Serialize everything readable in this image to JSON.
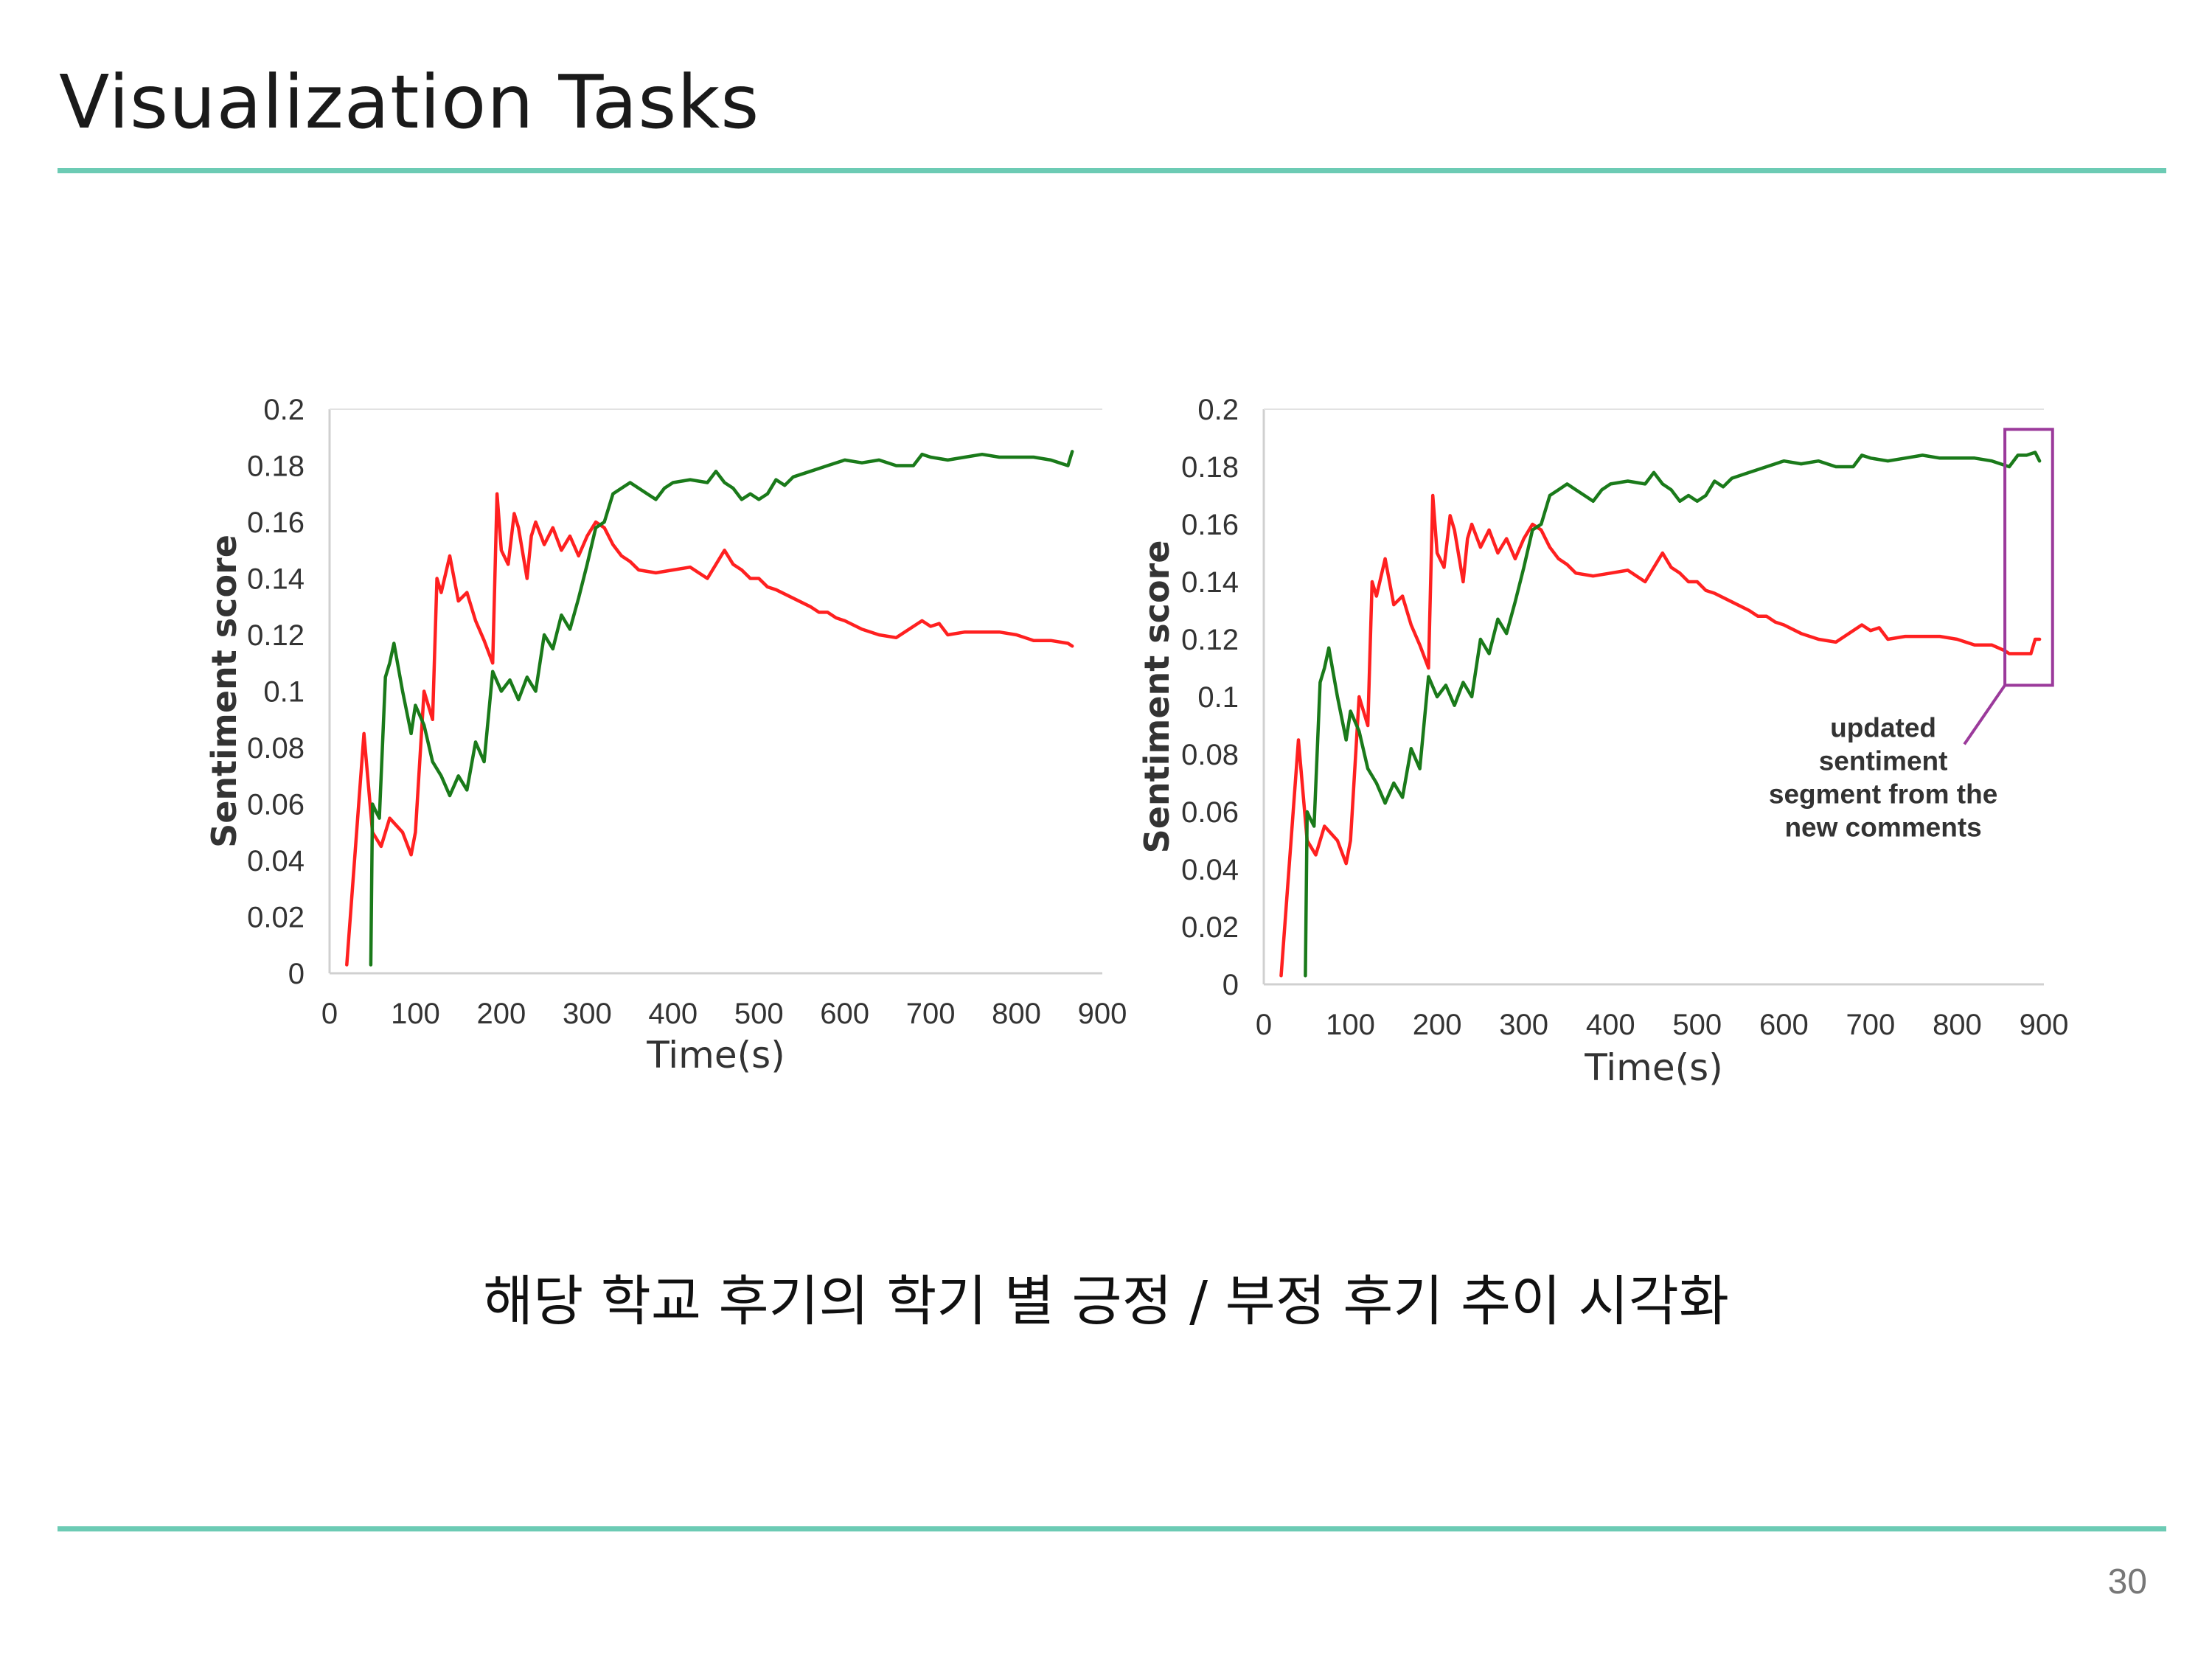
{
  "slide": {
    "title": "Visualization Tasks",
    "caption": "해당 학교 후기의 학기 별 긍정 / 부정 후기 추이 시각화",
    "page_number": "30",
    "accent_color": "#6ccbb4"
  },
  "chart_data": [
    {
      "type": "line",
      "xlabel": "Time(s)",
      "ylabel": "Sentiment score",
      "xlim": [
        0,
        900
      ],
      "ylim": [
        0,
        0.2
      ],
      "x_ticks": [
        "0",
        "100",
        "200",
        "300",
        "400",
        "500",
        "600",
        "700",
        "800",
        "900"
      ],
      "y_ticks": [
        "0",
        "0.02",
        "0.04",
        "0.06",
        "0.08",
        "0.1",
        "0.12",
        "0.14",
        "0.16",
        "0.18",
        "0.2"
      ],
      "grid": false,
      "series": [
        {
          "color": "#ff2020",
          "x": [
            20,
            40,
            50,
            60,
            70,
            85,
            95,
            100,
            110,
            120,
            125,
            130,
            140,
            150,
            160,
            170,
            180,
            190,
            195,
            200,
            208,
            215,
            220,
            230,
            235,
            240,
            250,
            260,
            270,
            280,
            290,
            300,
            310,
            320,
            330,
            340,
            350,
            360,
            380,
            400,
            420,
            430,
            440,
            460,
            470,
            480,
            490,
            500,
            510,
            520,
            540,
            560,
            570,
            580,
            590,
            600,
            620,
            640,
            660,
            690,
            700,
            710,
            720,
            740,
            760,
            780,
            800,
            820,
            840,
            860,
            865
          ],
          "values": [
            0.003,
            0.085,
            0.05,
            0.045,
            0.055,
            0.05,
            0.042,
            0.05,
            0.1,
            0.09,
            0.14,
            0.135,
            0.148,
            0.132,
            0.135,
            0.125,
            0.118,
            0.11,
            0.17,
            0.15,
            0.145,
            0.163,
            0.158,
            0.14,
            0.155,
            0.16,
            0.152,
            0.158,
            0.15,
            0.155,
            0.148,
            0.155,
            0.16,
            0.158,
            0.152,
            0.148,
            0.146,
            0.143,
            0.142,
            0.143,
            0.144,
            0.142,
            0.14,
            0.15,
            0.145,
            0.143,
            0.14,
            0.14,
            0.137,
            0.136,
            0.133,
            0.13,
            0.128,
            0.128,
            0.126,
            0.125,
            0.122,
            0.12,
            0.119,
            0.125,
            0.123,
            0.124,
            0.12,
            0.121,
            0.121,
            0.121,
            0.12,
            0.118,
            0.118,
            0.117,
            0.116
          ]
        },
        {
          "color": "#1a7a1a",
          "x": [
            48,
            50,
            53,
            58,
            65,
            70,
            75,
            85,
            95,
            100,
            110,
            120,
            130,
            140,
            150,
            160,
            170,
            180,
            190,
            200,
            210,
            220,
            230,
            240,
            250,
            260,
            270,
            280,
            290,
            300,
            310,
            320,
            330,
            340,
            350,
            360,
            370,
            380,
            390,
            400,
            420,
            440,
            450,
            460,
            470,
            480,
            490,
            500,
            510,
            520,
            530,
            540,
            560,
            580,
            600,
            620,
            640,
            660,
            680,
            690,
            700,
            720,
            740,
            760,
            780,
            800,
            820,
            840,
            850,
            860,
            865
          ],
          "values": [
            0.003,
            0.06,
            0.058,
            0.055,
            0.105,
            0.11,
            0.117,
            0.1,
            0.085,
            0.095,
            0.088,
            0.075,
            0.07,
            0.063,
            0.07,
            0.065,
            0.082,
            0.075,
            0.107,
            0.1,
            0.104,
            0.097,
            0.105,
            0.1,
            0.12,
            0.115,
            0.127,
            0.122,
            0.133,
            0.145,
            0.158,
            0.16,
            0.17,
            0.172,
            0.174,
            0.172,
            0.17,
            0.168,
            0.172,
            0.174,
            0.175,
            0.174,
            0.178,
            0.174,
            0.172,
            0.168,
            0.17,
            0.168,
            0.17,
            0.175,
            0.173,
            0.176,
            0.178,
            0.18,
            0.182,
            0.181,
            0.182,
            0.18,
            0.18,
            0.184,
            0.183,
            0.182,
            0.183,
            0.184,
            0.183,
            0.183,
            0.183,
            0.182,
            0.181,
            0.18,
            0.185
          ]
        }
      ]
    },
    {
      "type": "line",
      "xlabel": "Time(s)",
      "ylabel": "Sentiment score",
      "xlim": [
        0,
        900
      ],
      "ylim": [
        0,
        0.2
      ],
      "x_ticks": [
        "0",
        "100",
        "200",
        "300",
        "400",
        "500",
        "600",
        "700",
        "800",
        "900"
      ],
      "y_ticks": [
        "0",
        "0.02",
        "0.04",
        "0.06",
        "0.08",
        "0.1",
        "0.12",
        "0.14",
        "0.16",
        "0.18",
        "0.2"
      ],
      "grid": false,
      "annotation": {
        "lines": [
          "updated",
          "sentiment",
          "segment from the",
          "new comments"
        ],
        "box_x": [
          855,
          910
        ],
        "box_y": [
          0.104,
          0.193
        ],
        "color": "#9b3a9b"
      },
      "series": [
        {
          "color": "#ff2020",
          "x": [
            20,
            40,
            50,
            60,
            70,
            85,
            95,
            100,
            110,
            120,
            125,
            130,
            140,
            150,
            160,
            170,
            180,
            190,
            195,
            200,
            208,
            215,
            220,
            230,
            235,
            240,
            250,
            260,
            270,
            280,
            290,
            300,
            310,
            320,
            330,
            340,
            350,
            360,
            380,
            400,
            420,
            430,
            440,
            460,
            470,
            480,
            490,
            500,
            510,
            520,
            540,
            560,
            570,
            580,
            590,
            600,
            620,
            640,
            660,
            690,
            700,
            710,
            720,
            740,
            760,
            780,
            800,
            820,
            840,
            855,
            860,
            870,
            885,
            890,
            895
          ],
          "values": [
            0.003,
            0.085,
            0.05,
            0.045,
            0.055,
            0.05,
            0.042,
            0.05,
            0.1,
            0.09,
            0.14,
            0.135,
            0.148,
            0.132,
            0.135,
            0.125,
            0.118,
            0.11,
            0.17,
            0.15,
            0.145,
            0.163,
            0.158,
            0.14,
            0.155,
            0.16,
            0.152,
            0.158,
            0.15,
            0.155,
            0.148,
            0.155,
            0.16,
            0.158,
            0.152,
            0.148,
            0.146,
            0.143,
            0.142,
            0.143,
            0.144,
            0.142,
            0.14,
            0.15,
            0.145,
            0.143,
            0.14,
            0.14,
            0.137,
            0.136,
            0.133,
            0.13,
            0.128,
            0.128,
            0.126,
            0.125,
            0.122,
            0.12,
            0.119,
            0.125,
            0.123,
            0.124,
            0.12,
            0.121,
            0.121,
            0.121,
            0.12,
            0.118,
            0.118,
            0.116,
            0.115,
            0.115,
            0.115,
            0.12,
            0.12
          ]
        },
        {
          "color": "#1a7a1a",
          "x": [
            48,
            50,
            53,
            58,
            65,
            70,
            75,
            85,
            95,
            100,
            110,
            120,
            130,
            140,
            150,
            160,
            170,
            180,
            190,
            200,
            210,
            220,
            230,
            240,
            250,
            260,
            270,
            280,
            290,
            300,
            310,
            320,
            330,
            340,
            350,
            360,
            370,
            380,
            390,
            400,
            420,
            440,
            450,
            460,
            470,
            480,
            490,
            500,
            510,
            520,
            530,
            540,
            560,
            580,
            600,
            620,
            640,
            660,
            680,
            690,
            700,
            720,
            740,
            760,
            780,
            800,
            820,
            840,
            850,
            860,
            870,
            880,
            890,
            895
          ],
          "values": [
            0.003,
            0.06,
            0.058,
            0.055,
            0.105,
            0.11,
            0.117,
            0.1,
            0.085,
            0.095,
            0.088,
            0.075,
            0.07,
            0.063,
            0.07,
            0.065,
            0.082,
            0.075,
            0.107,
            0.1,
            0.104,
            0.097,
            0.105,
            0.1,
            0.12,
            0.115,
            0.127,
            0.122,
            0.133,
            0.145,
            0.158,
            0.16,
            0.17,
            0.172,
            0.174,
            0.172,
            0.17,
            0.168,
            0.172,
            0.174,
            0.175,
            0.174,
            0.178,
            0.174,
            0.172,
            0.168,
            0.17,
            0.168,
            0.17,
            0.175,
            0.173,
            0.176,
            0.178,
            0.18,
            0.182,
            0.181,
            0.182,
            0.18,
            0.18,
            0.184,
            0.183,
            0.182,
            0.183,
            0.184,
            0.183,
            0.183,
            0.183,
            0.182,
            0.181,
            0.18,
            0.184,
            0.184,
            0.185,
            0.182
          ]
        }
      ]
    }
  ]
}
